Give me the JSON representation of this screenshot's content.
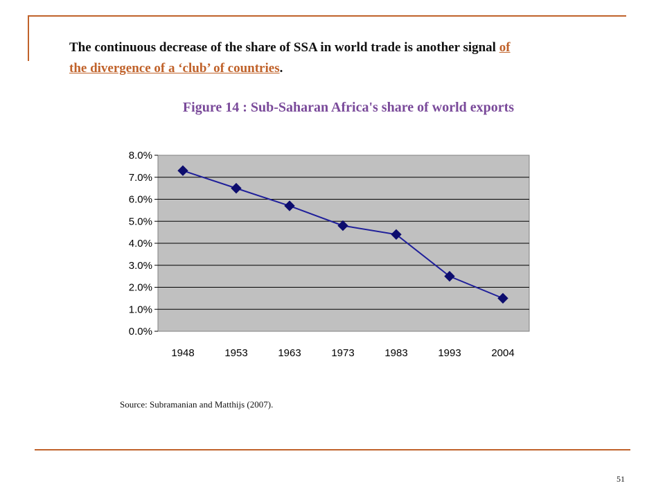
{
  "slide": {
    "headline_main": "The continuous decrease of the share of SSA in world trade is another signal ",
    "headline_accent_a": "of",
    "headline_accent_b": "the divergence of a ‘club’ of countries",
    "headline_end": ".",
    "figure_title": "Figure 14 : Sub-Saharan Africa's share of world exports",
    "source": "Source: Subramanian and Matthijs (2007).",
    "page_number": "51"
  },
  "colors": {
    "accent": "#c0622a",
    "figure_title": "#7a4a9a",
    "plot_background": "#c0c0c0",
    "series_line": "#1f1f9a",
    "marker": "#0d0d6e"
  },
  "chart_data": {
    "type": "line",
    "title": "",
    "xlabel": "",
    "ylabel": "",
    "categories": [
      "1948",
      "1953",
      "1963",
      "1973",
      "1983",
      "1993",
      "2004"
    ],
    "series": [
      {
        "values": [
          7.3,
          6.5,
          5.7,
          4.8,
          4.4,
          2.5,
          1.5
        ]
      }
    ],
    "y_unit": "%",
    "ylim": [
      0,
      8
    ],
    "yticks": [
      "0.0%",
      "1.0%",
      "2.0%",
      "3.0%",
      "4.0%",
      "5.0%",
      "6.0%",
      "7.0%",
      "8.0%"
    ],
    "grid": true,
    "marker": "diamond",
    "legend": "none"
  }
}
